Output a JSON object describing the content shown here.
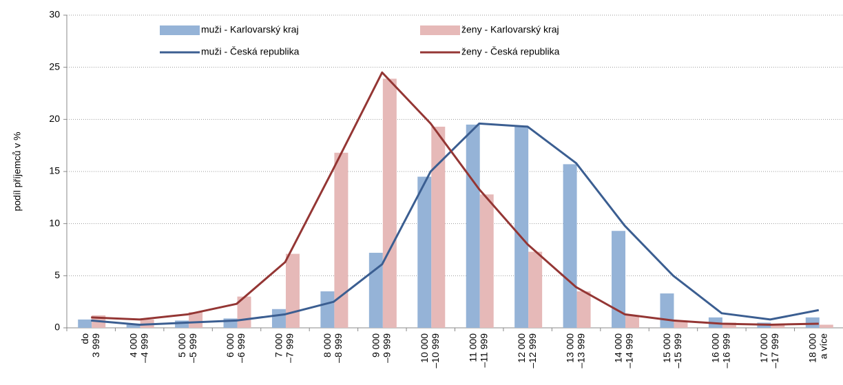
{
  "chart_data": {
    "type": "bar-line",
    "y_label": "podíl příjemců v %",
    "categories": [
      [
        "do",
        "3 999"
      ],
      [
        "4 000",
        "–4 999"
      ],
      [
        "5 000",
        "–5 999"
      ],
      [
        "6 000",
        "–6 999"
      ],
      [
        "7 000",
        "–7 999"
      ],
      [
        "8 000",
        "–8 999"
      ],
      [
        "9 000",
        "–9 999"
      ],
      [
        "10 000",
        "–10 999"
      ],
      [
        "11 000",
        "–11 999"
      ],
      [
        "12 000",
        "–12 999"
      ],
      [
        "13 000",
        "–13 999"
      ],
      [
        "14 000",
        "–14 999"
      ],
      [
        "15 000",
        "–15 999"
      ],
      [
        "16 000",
        "–16 999"
      ],
      [
        "17 000",
        "–17 999"
      ],
      [
        "18 000",
        "a více"
      ]
    ],
    "series": [
      {
        "name": "muži - Karlovarský kraj",
        "kind": "bar",
        "color": "#95b3d7",
        "values": [
          0.8,
          0.3,
          0.7,
          0.9,
          1.8,
          3.5,
          7.2,
          14.5,
          19.5,
          19.3,
          15.7,
          9.3,
          3.3,
          1.0,
          0.5,
          1.0
        ]
      },
      {
        "name": "ženy - Karlovarský kraj",
        "kind": "bar",
        "color": "#e6b9b8",
        "values": [
          1.2,
          0.8,
          1.5,
          3.0,
          7.1,
          16.8,
          23.9,
          19.3,
          12.8,
          7.3,
          3.5,
          1.2,
          0.7,
          0.5,
          0.3,
          0.3
        ]
      },
      {
        "name": "muži - Česká republika",
        "kind": "line",
        "color": "#3b5e91",
        "values": [
          0.7,
          0.3,
          0.5,
          0.7,
          1.3,
          2.5,
          6.1,
          15.0,
          19.6,
          19.3,
          15.8,
          9.8,
          5.0,
          1.4,
          0.8,
          1.7
        ]
      },
      {
        "name": "ženy - Česká republika",
        "kind": "line",
        "color": "#943634",
        "values": [
          1.0,
          0.8,
          1.3,
          2.3,
          6.3,
          15.3,
          24.5,
          19.6,
          13.3,
          8.0,
          3.9,
          1.3,
          0.7,
          0.4,
          0.3,
          0.4
        ]
      }
    ],
    "ylim": [
      0,
      30
    ],
    "yticks": [
      0,
      5,
      10,
      15,
      20,
      25,
      30
    ],
    "grid": true,
    "legend": "top"
  }
}
